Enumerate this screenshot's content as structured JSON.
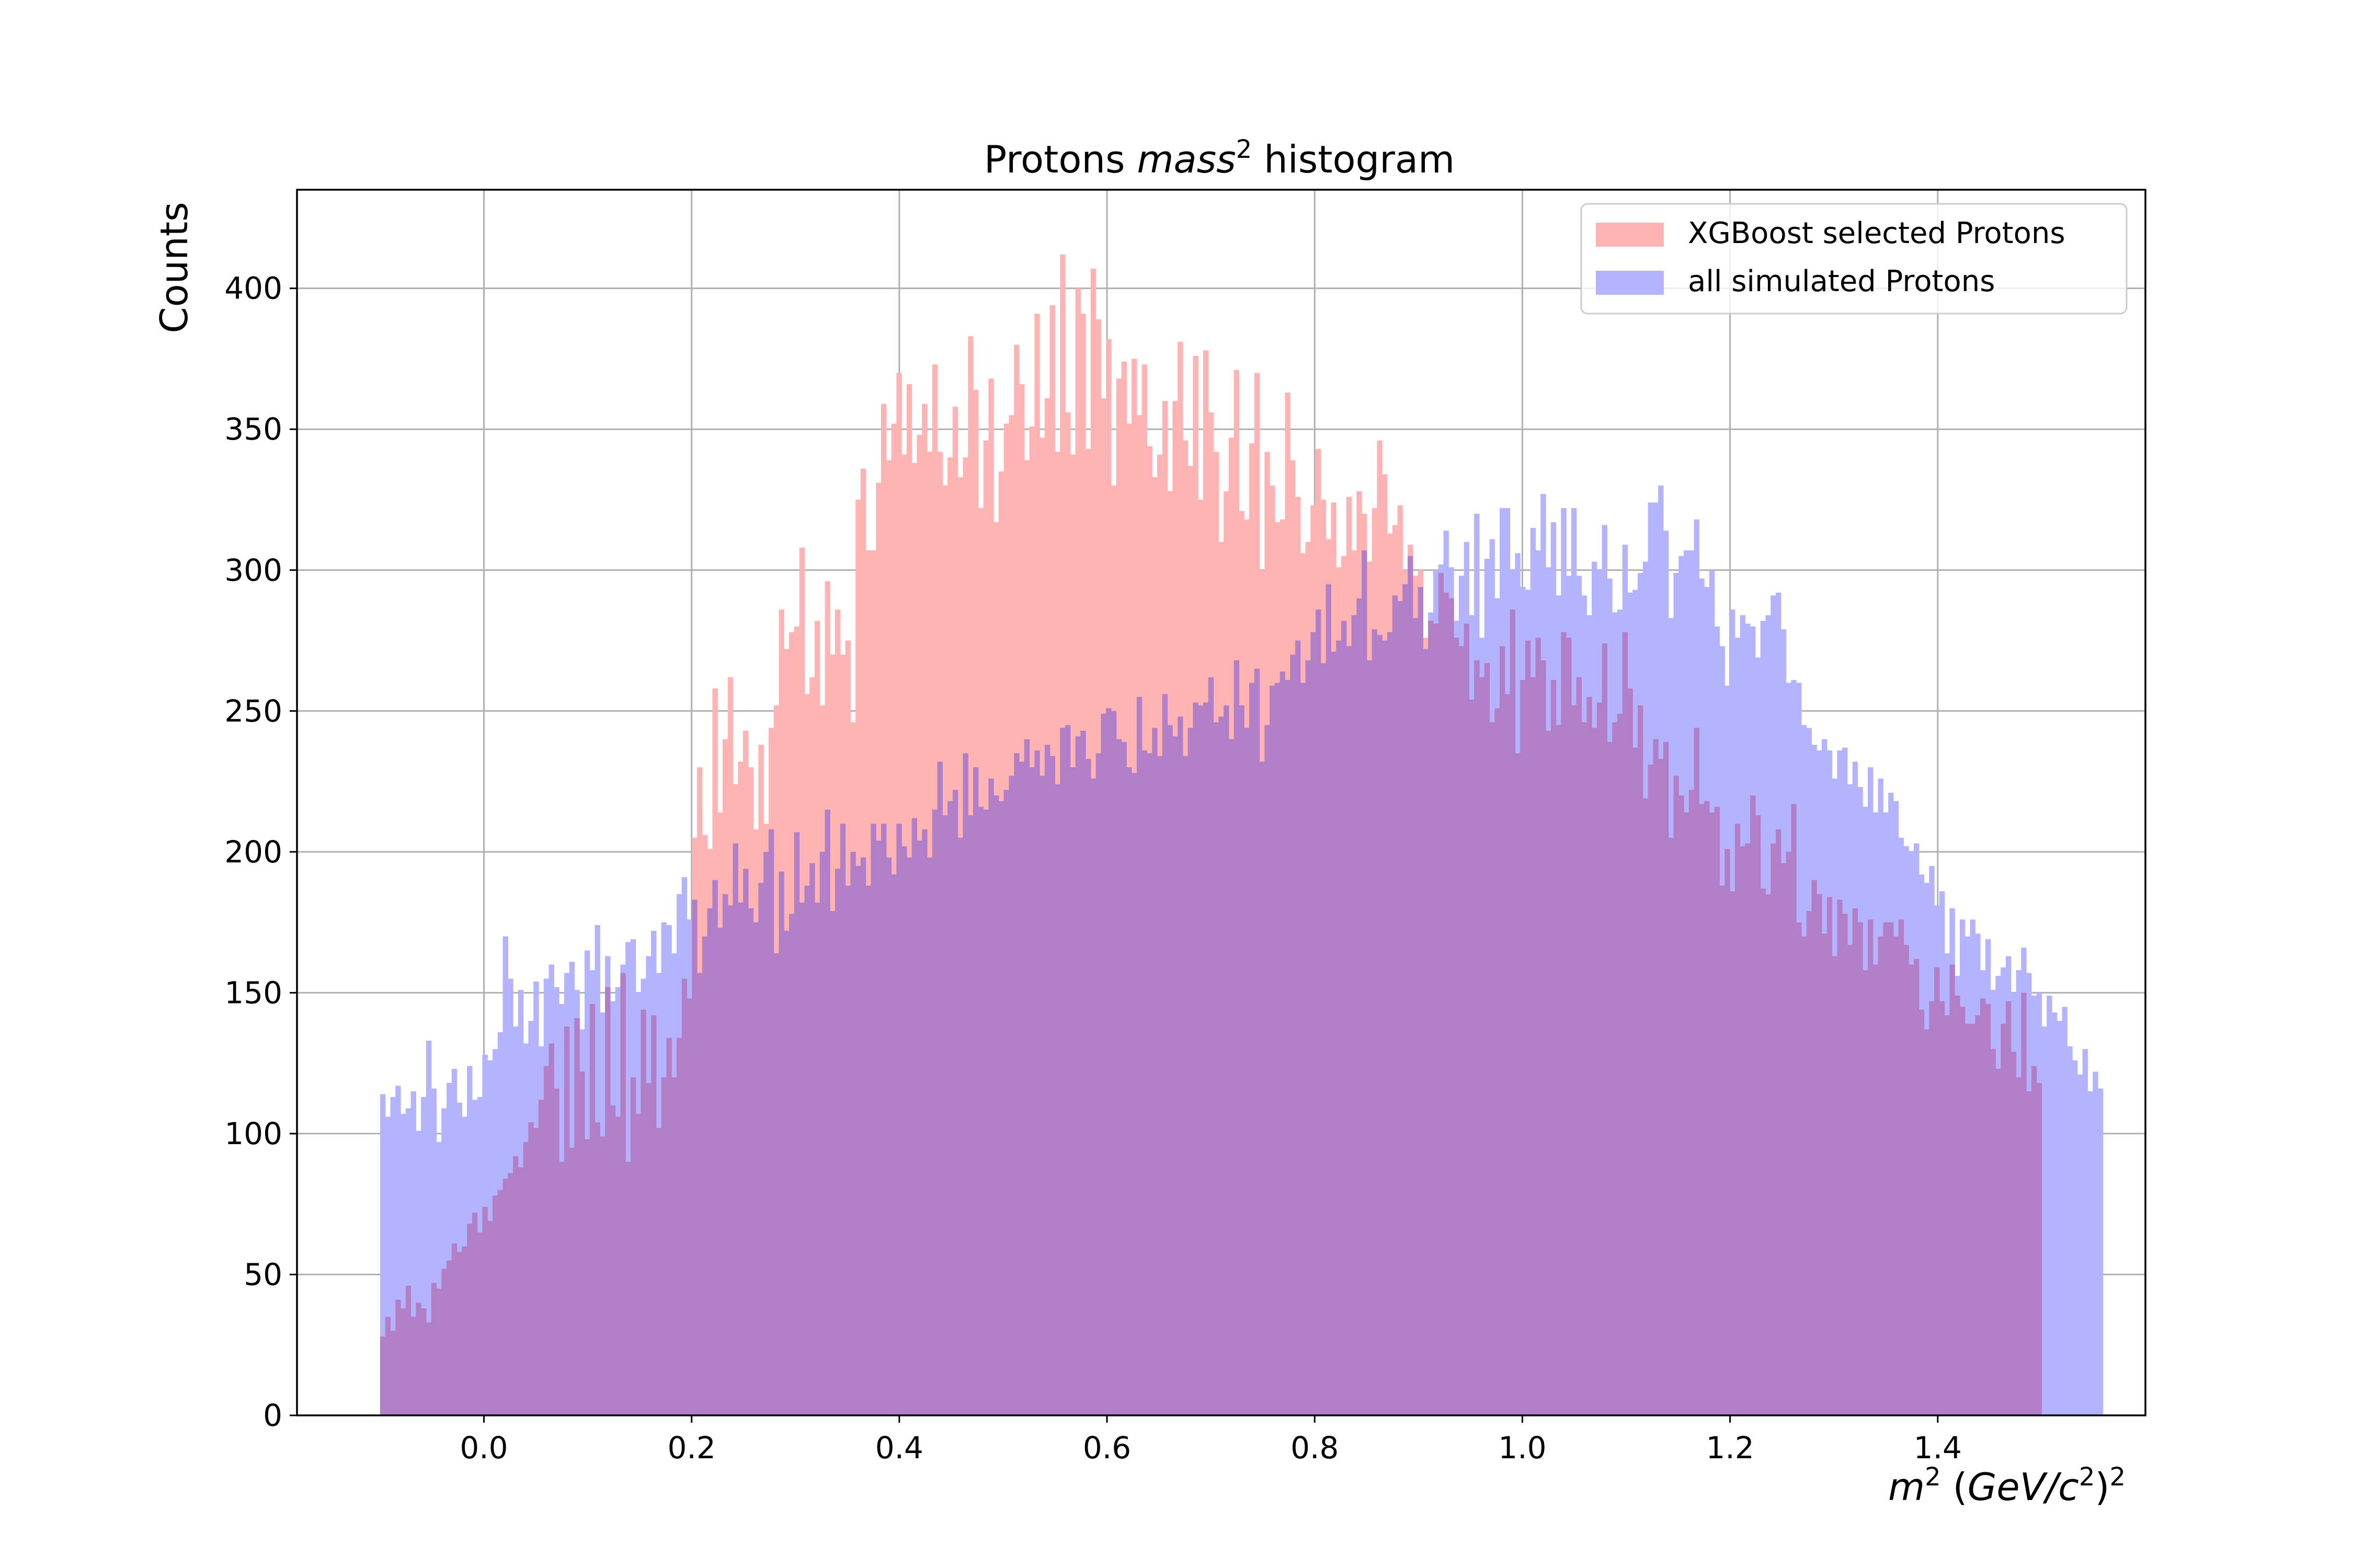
{
  "chart_data": {
    "type": "histogram",
    "title": {
      "text": "Protons ",
      "math": "mass",
      "sup": "2",
      "rest": " histogram"
    },
    "xlabel": {
      "m": "m",
      "m_sup": "2",
      "paren_open": " (",
      "gev": "GeV/c",
      "gev_sup": "2",
      "paren_close": ")",
      "outer_sup": "2"
    },
    "ylabel": "Counts",
    "xlim": [
      -0.18,
      1.6
    ],
    "ylim": [
      0,
      435
    ],
    "xticks": [
      0.0,
      0.2,
      0.4,
      0.6,
      0.8,
      1.0,
      1.2,
      1.4
    ],
    "xtick_labels": [
      "0.0",
      "0.2",
      "0.4",
      "0.6",
      "0.8",
      "1.0",
      "1.2",
      "1.4"
    ],
    "yticks": [
      0,
      50,
      100,
      150,
      200,
      250,
      300,
      350,
      400
    ],
    "ytick_labels": [
      "0",
      "50",
      "100",
      "150",
      "200",
      "250",
      "300",
      "350",
      "400"
    ],
    "grid": true,
    "legend_position": "top-right",
    "bin_start": -0.1,
    "bin_end": 1.5,
    "series": [
      {
        "name": "XGBoost selected Protons",
        "color": "#ffb3b3",
        "values": [
          28,
          35,
          30,
          41,
          38,
          46,
          35,
          40,
          38,
          33,
          47,
          45,
          52,
          55,
          61,
          58,
          60,
          68,
          72,
          65,
          74,
          69,
          78,
          80,
          84,
          86,
          92,
          88,
          97,
          104,
          102,
          112,
          124,
          132,
          116,
          90,
          138,
          95,
          141,
          122,
          98,
          146,
          104,
          99,
          152,
          110,
          106,
          157,
          90,
          120,
          107,
          144,
          118,
          142,
          102,
          120,
          134,
          120,
          134,
          155,
          148,
          205,
          230,
          206,
          201,
          258,
          214,
          240,
          262,
          224,
          232,
          243,
          230,
          208,
          238,
          210,
          244,
          252,
          286,
          272,
          278,
          280,
          308,
          256,
          262,
          282,
          252,
          296,
          270,
          286,
          270,
          275,
          246,
          325,
          336,
          307,
          307,
          331,
          359,
          339,
          352,
          370,
          341,
          366,
          338,
          348,
          359,
          342,
          373,
          342,
          330,
          340,
          358,
          333,
          340,
          383,
          364,
          322,
          346,
          368,
          317,
          335,
          352,
          355,
          380,
          366,
          339,
          351,
          391,
          347,
          361,
          394,
          342,
          412,
          356,
          341,
          400,
          391,
          343,
          407,
          389,
          361,
          382,
          330,
          368,
          374,
          352,
          375,
          355,
          373,
          344,
          333,
          341,
          360,
          328,
          360,
          381,
          346,
          337,
          376,
          325,
          378,
          356,
          342,
          310,
          328,
          347,
          371,
          321,
          318,
          345,
          370,
          300,
          342,
          330,
          317,
          318,
          363,
          339,
          326,
          306,
          310,
          323,
          343,
          325,
          311,
          324,
          301,
          305,
          326,
          307,
          328,
          320,
          303,
          322,
          346,
          334,
          313,
          316,
          323,
          300,
          309,
          298,
          300,
          276,
          282,
          281,
          299,
          292,
          290,
          276,
          273,
          281,
          254,
          268,
          262,
          267,
          246,
          251,
          273,
          256,
          286,
          235,
          261,
          275,
          262,
          276,
          268,
          243,
          261,
          245,
          278,
          276,
          252,
          262,
          246,
          255,
          244,
          253,
          274,
          239,
          246,
          249,
          278,
          258,
          237,
          252,
          219,
          231,
          240,
          233,
          239,
          205,
          227,
          220,
          214,
          222,
          244,
          217,
          218,
          214,
          216,
          188,
          201,
          186,
          210,
          202,
          203,
          220,
          213,
          187,
          185,
          203,
          208,
          196,
          200,
          217,
          175,
          170,
          179,
          190,
          185,
          171,
          184,
          163,
          183,
          178,
          167,
          180,
          175,
          158,
          176,
          160,
          170,
          175,
          175,
          170,
          176,
          167,
          160,
          162,
          144,
          137,
          147,
          159,
          147,
          142,
          160,
          149,
          145,
          139,
          139,
          142,
          148,
          146,
          130,
          123,
          139,
          147,
          129,
          120,
          150,
          115,
          124,
          118
        ],
        "note_overlap": "pink plus blue renders purple"
      },
      {
        "name": "all simulated Protons",
        "color": "#b3b3ff",
        "values": [
          114,
          106,
          113,
          117,
          107,
          109,
          115,
          101,
          113,
          133,
          116,
          97,
          109,
          118,
          123,
          111,
          106,
          124,
          112,
          113,
          128,
          126,
          130,
          136,
          170,
          155,
          138,
          151,
          132,
          140,
          154,
          131,
          155,
          160,
          152,
          146,
          157,
          161,
          151,
          137,
          165,
          158,
          174,
          143,
          163,
          147,
          152,
          160,
          168,
          169,
          150,
          155,
          163,
          172,
          157,
          175,
          174,
          164,
          185,
          191,
          176,
          183,
          157,
          170,
          180,
          190,
          173,
          185,
          181,
          203,
          182,
          194,
          180,
          175,
          189,
          200,
          208,
          164,
          193,
          172,
          178,
          207,
          182,
          188,
          196,
          182,
          200,
          215,
          179,
          194,
          210,
          188,
          200,
          195,
          198,
          188,
          210,
          204,
          210,
          198,
          192,
          210,
          202,
          198,
          212,
          204,
          208,
          198,
          215,
          232,
          213,
          218,
          222,
          205,
          235,
          213,
          230,
          216,
          215,
          226,
          220,
          218,
          222,
          227,
          235,
          232,
          240,
          230,
          236,
          227,
          238,
          234,
          224,
          244,
          245,
          230,
          241,
          243,
          233,
          226,
          235,
          249,
          251,
          250,
          240,
          239,
          230,
          228,
          255,
          236,
          235,
          244,
          234,
          256,
          245,
          241,
          248,
          234,
          244,
          253,
          252,
          253,
          262,
          246,
          248,
          252,
          240,
          268,
          252,
          244,
          260,
          265,
          232,
          245,
          259,
          260,
          264,
          261,
          270,
          275,
          260,
          268,
          278,
          286,
          267,
          295,
          271,
          275,
          282,
          273,
          284,
          290,
          307,
          268,
          279,
          277,
          275,
          278,
          291,
          289,
          295,
          305,
          283,
          294,
          272,
          285,
          300,
          302,
          314,
          301,
          282,
          298,
          310,
          284,
          320,
          276,
          304,
          311,
          290,
          322,
          322,
          300,
          306,
          294,
          293,
          315,
          307,
          327,
          301,
          317,
          291,
          322,
          298,
          322,
          298,
          291,
          284,
          303,
          300,
          316,
          297,
          285,
          286,
          309,
          292,
          293,
          299,
          303,
          324,
          324,
          330,
          314,
          283,
          299,
          305,
          307,
          307,
          318,
          297,
          294,
          300,
          280,
          273,
          259,
          286,
          276,
          284,
          281,
          280,
          269,
          282,
          284,
          291,
          292,
          279,
          260,
          261,
          260,
          245,
          244,
          238,
          236,
          240,
          236,
          226,
          236,
          237,
          224,
          232,
          223,
          216,
          230,
          214,
          226,
          214,
          221,
          218,
          205,
          202,
          200,
          203,
          192,
          189,
          195,
          181,
          186,
          164,
          180,
          156,
          176,
          170,
          176,
          171,
          158,
          169,
          151,
          156,
          159,
          163,
          150,
          158,
          166,
          157,
          149,
          150,
          138,
          149,
          143,
          140,
          145,
          131,
          126,
          121,
          130,
          115,
          122,
          116
        ],
        "note_overlap": "rendered underneath with alpha"
      }
    ]
  }
}
